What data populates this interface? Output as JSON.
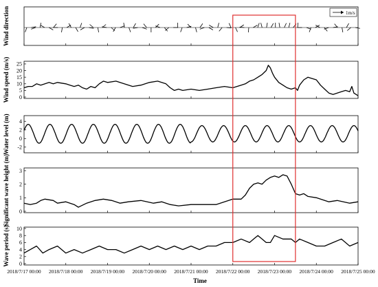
{
  "chart_data": {
    "type": "line",
    "xlabel": "Time",
    "x_ticks": [
      "2018/7/17 00:00",
      "2018/7/18 00:00",
      "2018/7/19 00:00",
      "2018/7/20 00:00",
      "2018/7/21 00:00",
      "2018/7/22 00:00",
      "2018/7/23 00:00",
      "2018/7/24 00:00",
      "2018/7/25 00:00"
    ],
    "x_range_days": [
      0,
      8
    ],
    "highlight": {
      "from": "2018/7/22 00:00",
      "to": "2018/7/23 12:00",
      "color": "#e03030"
    },
    "panels": [
      {
        "id": "wind-direction",
        "ylabel": "Wind direction",
        "type": "vector",
        "legend": "1m/s",
        "legend_position": "top-right",
        "angles_deg": [
          200,
          80,
          250,
          10,
          300,
          120,
          40,
          270,
          190,
          60,
          330,
          150,
          20,
          240,
          100,
          310,
          170,
          50,
          280,
          130,
          210,
          70,
          350,
          160,
          30,
          260,
          110,
          320,
          180,
          45,
          290,
          140,
          230,
          90,
          0,
          200,
          75,
          315,
          165,
          35,
          250,
          120,
          300,
          15,
          220,
          95,
          335,
          155,
          55,
          275,
          185,
          60,
          20,
          345,
          10,
          30,
          0,
          350,
          25,
          15,
          40,
          5,
          270,
          110,
          200,
          60,
          300,
          140,
          250,
          80,
          320,
          170,
          30,
          230,
          100
        ]
      },
      {
        "id": "wind-speed",
        "ylabel": "Wind speed (m/s)",
        "yticks": [
          0,
          5,
          10,
          15,
          20,
          25
        ],
        "ylim": [
          0,
          26
        ],
        "points": [
          [
            0.0,
            7
          ],
          [
            0.1,
            8
          ],
          [
            0.2,
            8
          ],
          [
            0.3,
            10
          ],
          [
            0.4,
            9
          ],
          [
            0.5,
            10
          ],
          [
            0.6,
            11
          ],
          [
            0.7,
            10
          ],
          [
            0.8,
            11
          ],
          [
            1.0,
            10
          ],
          [
            1.1,
            9
          ],
          [
            1.2,
            8
          ],
          [
            1.3,
            9
          ],
          [
            1.4,
            7
          ],
          [
            1.5,
            6
          ],
          [
            1.6,
            8
          ],
          [
            1.7,
            7
          ],
          [
            1.8,
            10
          ],
          [
            1.9,
            12
          ],
          [
            2.0,
            11
          ],
          [
            2.2,
            12
          ],
          [
            2.4,
            10
          ],
          [
            2.6,
            8
          ],
          [
            2.8,
            9
          ],
          [
            3.0,
            11
          ],
          [
            3.2,
            12
          ],
          [
            3.4,
            10
          ],
          [
            3.5,
            7
          ],
          [
            3.6,
            5
          ],
          [
            3.7,
            6
          ],
          [
            3.8,
            5
          ],
          [
            4.0,
            6
          ],
          [
            4.2,
            5
          ],
          [
            4.4,
            6
          ],
          [
            4.6,
            7
          ],
          [
            4.8,
            8
          ],
          [
            5.0,
            7
          ],
          [
            5.1,
            8
          ],
          [
            5.2,
            9
          ],
          [
            5.3,
            10
          ],
          [
            5.4,
            12
          ],
          [
            5.5,
            13
          ],
          [
            5.6,
            15
          ],
          [
            5.7,
            17
          ],
          [
            5.8,
            20
          ],
          [
            5.85,
            24
          ],
          [
            5.9,
            22
          ],
          [
            5.95,
            18
          ],
          [
            6.0,
            15
          ],
          [
            6.1,
            11
          ],
          [
            6.2,
            9
          ],
          [
            6.3,
            7
          ],
          [
            6.4,
            6
          ],
          [
            6.5,
            7
          ],
          [
            6.55,
            5
          ],
          [
            6.6,
            9
          ],
          [
            6.7,
            13
          ],
          [
            6.8,
            15
          ],
          [
            6.9,
            14
          ],
          [
            7.0,
            13
          ],
          [
            7.1,
            9
          ],
          [
            7.2,
            6
          ],
          [
            7.3,
            3
          ],
          [
            7.4,
            2
          ],
          [
            7.5,
            3
          ],
          [
            7.6,
            4
          ],
          [
            7.7,
            5
          ],
          [
            7.8,
            4
          ],
          [
            7.85,
            8
          ],
          [
            7.9,
            3
          ],
          [
            8.0,
            1
          ]
        ]
      },
      {
        "id": "water-level",
        "ylabel": "Water level (m)",
        "yticks": [
          -2,
          0,
          2,
          4
        ],
        "ylim": [
          -3,
          5
        ],
        "tide": {
          "mean": 1.1,
          "amplitude": 2.2,
          "amplitude_late": 1.9,
          "period_days": 0.52
        }
      },
      {
        "id": "wave-height",
        "ylabel": "Significant wave height (m)",
        "yticks": [
          0,
          1,
          2,
          3
        ],
        "ylim": [
          0,
          3.1
        ],
        "points": [
          [
            0.0,
            0.6
          ],
          [
            0.15,
            0.5
          ],
          [
            0.3,
            0.6
          ],
          [
            0.4,
            0.8
          ],
          [
            0.5,
            0.9
          ],
          [
            0.7,
            0.8
          ],
          [
            0.8,
            0.6
          ],
          [
            1.0,
            0.7
          ],
          [
            1.2,
            0.5
          ],
          [
            1.3,
            0.3
          ],
          [
            1.5,
            0.6
          ],
          [
            1.7,
            0.8
          ],
          [
            1.9,
            0.9
          ],
          [
            2.1,
            0.8
          ],
          [
            2.3,
            0.6
          ],
          [
            2.5,
            0.7
          ],
          [
            2.8,
            0.8
          ],
          [
            3.1,
            0.6
          ],
          [
            3.3,
            0.7
          ],
          [
            3.5,
            0.5
          ],
          [
            3.7,
            0.4
          ],
          [
            4.0,
            0.5
          ],
          [
            4.3,
            0.5
          ],
          [
            4.6,
            0.5
          ],
          [
            4.9,
            0.8
          ],
          [
            5.0,
            0.9
          ],
          [
            5.2,
            0.9
          ],
          [
            5.3,
            1.2
          ],
          [
            5.4,
            1.7
          ],
          [
            5.5,
            2.0
          ],
          [
            5.6,
            2.1
          ],
          [
            5.7,
            2.0
          ],
          [
            5.8,
            2.3
          ],
          [
            5.9,
            2.5
          ],
          [
            6.0,
            2.6
          ],
          [
            6.1,
            2.5
          ],
          [
            6.2,
            2.7
          ],
          [
            6.3,
            2.6
          ],
          [
            6.4,
            2.0
          ],
          [
            6.5,
            1.3
          ],
          [
            6.6,
            1.2
          ],
          [
            6.7,
            1.3
          ],
          [
            6.8,
            1.1
          ],
          [
            7.0,
            1.0
          ],
          [
            7.3,
            0.7
          ],
          [
            7.5,
            0.8
          ],
          [
            7.8,
            0.6
          ],
          [
            8.0,
            0.7
          ]
        ]
      },
      {
        "id": "wave-period",
        "ylabel": "Wave period (s)",
        "yticks": [
          0,
          2,
          4,
          6,
          8,
          10
        ],
        "ylim": [
          0,
          10
        ],
        "points": [
          [
            0.0,
            3
          ],
          [
            0.15,
            4
          ],
          [
            0.3,
            5
          ],
          [
            0.45,
            3
          ],
          [
            0.6,
            4
          ],
          [
            0.8,
            5
          ],
          [
            1.0,
            3
          ],
          [
            1.2,
            4
          ],
          [
            1.4,
            3
          ],
          [
            1.6,
            4
          ],
          [
            1.8,
            5
          ],
          [
            2.0,
            4
          ],
          [
            2.2,
            4
          ],
          [
            2.4,
            3
          ],
          [
            2.6,
            4
          ],
          [
            2.8,
            5
          ],
          [
            3.0,
            4
          ],
          [
            3.2,
            5
          ],
          [
            3.4,
            4
          ],
          [
            3.6,
            5
          ],
          [
            3.8,
            4
          ],
          [
            4.0,
            5
          ],
          [
            4.2,
            4
          ],
          [
            4.4,
            5
          ],
          [
            4.6,
            5
          ],
          [
            4.8,
            6
          ],
          [
            5.0,
            6
          ],
          [
            5.2,
            7
          ],
          [
            5.4,
            6
          ],
          [
            5.5,
            7
          ],
          [
            5.6,
            8
          ],
          [
            5.7,
            7
          ],
          [
            5.8,
            6
          ],
          [
            5.9,
            6
          ],
          [
            6.0,
            8
          ],
          [
            6.2,
            7
          ],
          [
            6.4,
            7
          ],
          [
            6.5,
            6
          ],
          [
            6.6,
            7
          ],
          [
            6.8,
            6
          ],
          [
            7.0,
            5
          ],
          [
            7.2,
            5
          ],
          [
            7.4,
            6
          ],
          [
            7.6,
            7
          ],
          [
            7.8,
            5
          ],
          [
            8.0,
            6
          ]
        ]
      }
    ]
  }
}
